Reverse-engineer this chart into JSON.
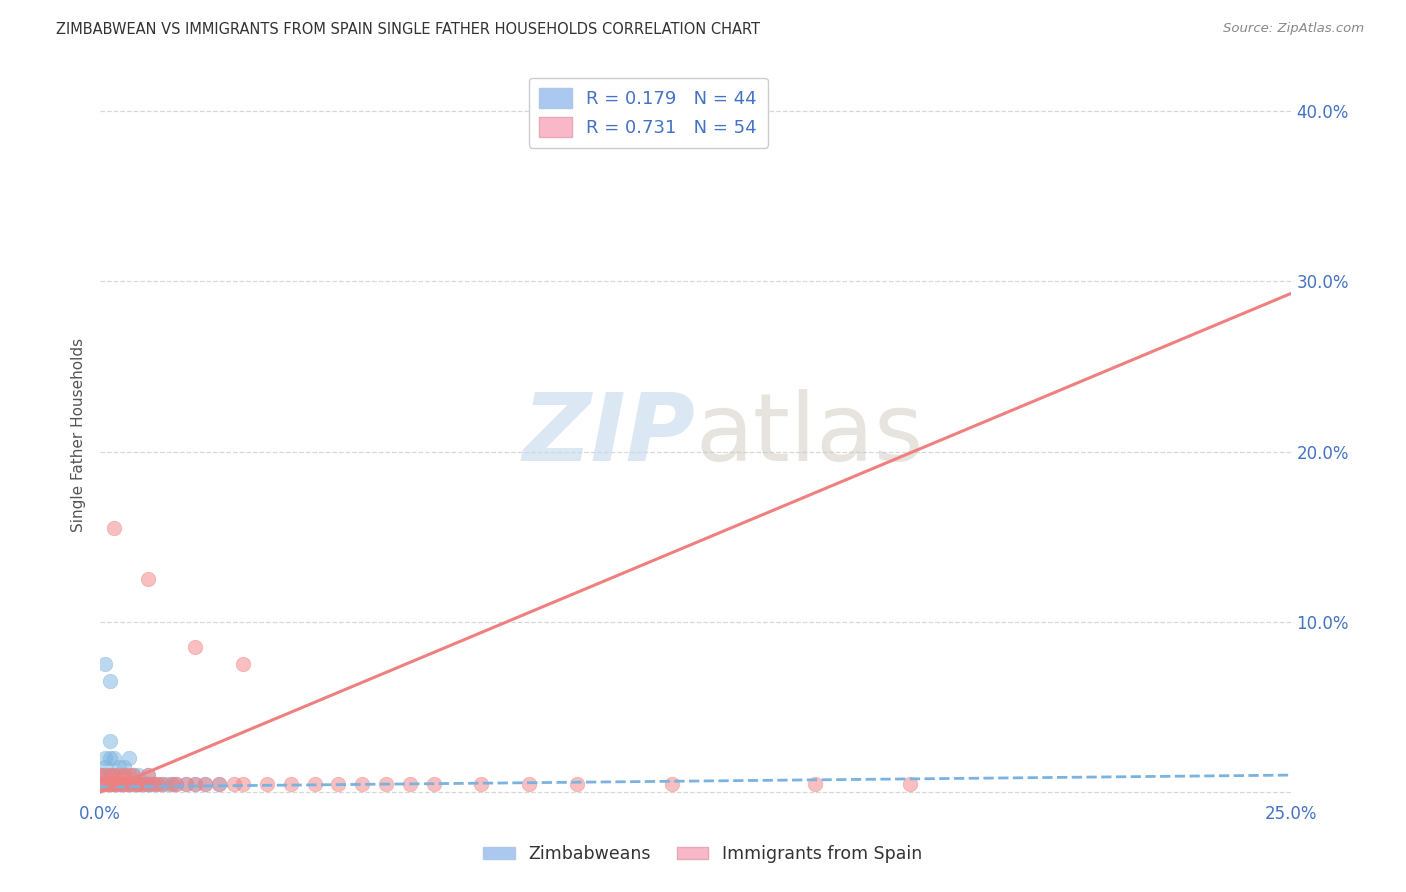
{
  "title": "ZIMBABWEAN VS IMMIGRANTS FROM SPAIN SINGLE FATHER HOUSEHOLDS CORRELATION CHART",
  "source": "Source: ZipAtlas.com",
  "ylabel": "Single Father Households",
  "ytick_values": [
    0.0,
    0.1,
    0.2,
    0.3,
    0.4
  ],
  "ytick_labels": [
    "",
    "10.0%",
    "20.0%",
    "30.0%",
    "40.0%"
  ],
  "xlim": [
    0.0,
    0.25
  ],
  "ylim": [
    -0.005,
    0.425
  ],
  "zim_color": "#7ab3e0",
  "spain_color": "#f08080",
  "zim_scatter_x": [
    0.0,
    0.0,
    0.001,
    0.001,
    0.001,
    0.001,
    0.002,
    0.002,
    0.002,
    0.002,
    0.003,
    0.003,
    0.003,
    0.004,
    0.004,
    0.005,
    0.005,
    0.005,
    0.006,
    0.006,
    0.007,
    0.007,
    0.008,
    0.008,
    0.009,
    0.01,
    0.01,
    0.011,
    0.012,
    0.013,
    0.014,
    0.015,
    0.016,
    0.018,
    0.02,
    0.022,
    0.025,
    0.001,
    0.002,
    0.003,
    0.004,
    0.006,
    0.008,
    0.01
  ],
  "zim_scatter_y": [
    0.005,
    0.01,
    0.005,
    0.01,
    0.015,
    0.02,
    0.005,
    0.01,
    0.02,
    0.03,
    0.005,
    0.01,
    0.02,
    0.005,
    0.015,
    0.005,
    0.01,
    0.015,
    0.005,
    0.02,
    0.005,
    0.01,
    0.005,
    0.01,
    0.005,
    0.005,
    0.01,
    0.005,
    0.005,
    0.005,
    0.005,
    0.005,
    0.005,
    0.005,
    0.005,
    0.005,
    0.005,
    0.075,
    0.065,
    0.005,
    0.005,
    0.005,
    0.005,
    0.005
  ],
  "spain_scatter_x": [
    0.0,
    0.0,
    0.001,
    0.001,
    0.001,
    0.002,
    0.002,
    0.002,
    0.003,
    0.003,
    0.003,
    0.004,
    0.004,
    0.005,
    0.005,
    0.005,
    0.006,
    0.006,
    0.007,
    0.007,
    0.008,
    0.008,
    0.009,
    0.01,
    0.01,
    0.011,
    0.012,
    0.013,
    0.015,
    0.016,
    0.018,
    0.02,
    0.022,
    0.025,
    0.028,
    0.03,
    0.035,
    0.04,
    0.045,
    0.05,
    0.055,
    0.06,
    0.065,
    0.07,
    0.08,
    0.09,
    0.1,
    0.12,
    0.15,
    0.17,
    0.003,
    0.03,
    0.01,
    0.02
  ],
  "spain_scatter_y": [
    0.005,
    0.01,
    0.005,
    0.01,
    0.005,
    0.005,
    0.01,
    0.005,
    0.005,
    0.01,
    0.005,
    0.005,
    0.01,
    0.005,
    0.01,
    0.005,
    0.005,
    0.01,
    0.005,
    0.01,
    0.005,
    0.005,
    0.005,
    0.005,
    0.01,
    0.005,
    0.005,
    0.005,
    0.005,
    0.005,
    0.005,
    0.005,
    0.005,
    0.005,
    0.005,
    0.005,
    0.005,
    0.005,
    0.005,
    0.005,
    0.005,
    0.005,
    0.005,
    0.005,
    0.005,
    0.005,
    0.005,
    0.005,
    0.005,
    0.005,
    0.155,
    0.075,
    0.125,
    0.085
  ],
  "zim_line_x": [
    0.0,
    0.25
  ],
  "zim_line_y": [
    0.003,
    0.01
  ],
  "spain_line_x": [
    0.0,
    0.25
  ],
  "spain_line_y": [
    0.0,
    0.293
  ],
  "watermark_zip": "ZIP",
  "watermark_atlas": "atlas",
  "background_color": "#ffffff",
  "grid_color": "#d8d8d8",
  "legend_blue_label": "R = 0.179   N = 44",
  "legend_pink_label": "R = 0.731   N = 54",
  "legend_blue_patch": "#aac8f0",
  "legend_pink_patch": "#f8b8c8",
  "bottom_legend_zim": "Zimbabweans",
  "bottom_legend_spain": "Immigrants from Spain"
}
